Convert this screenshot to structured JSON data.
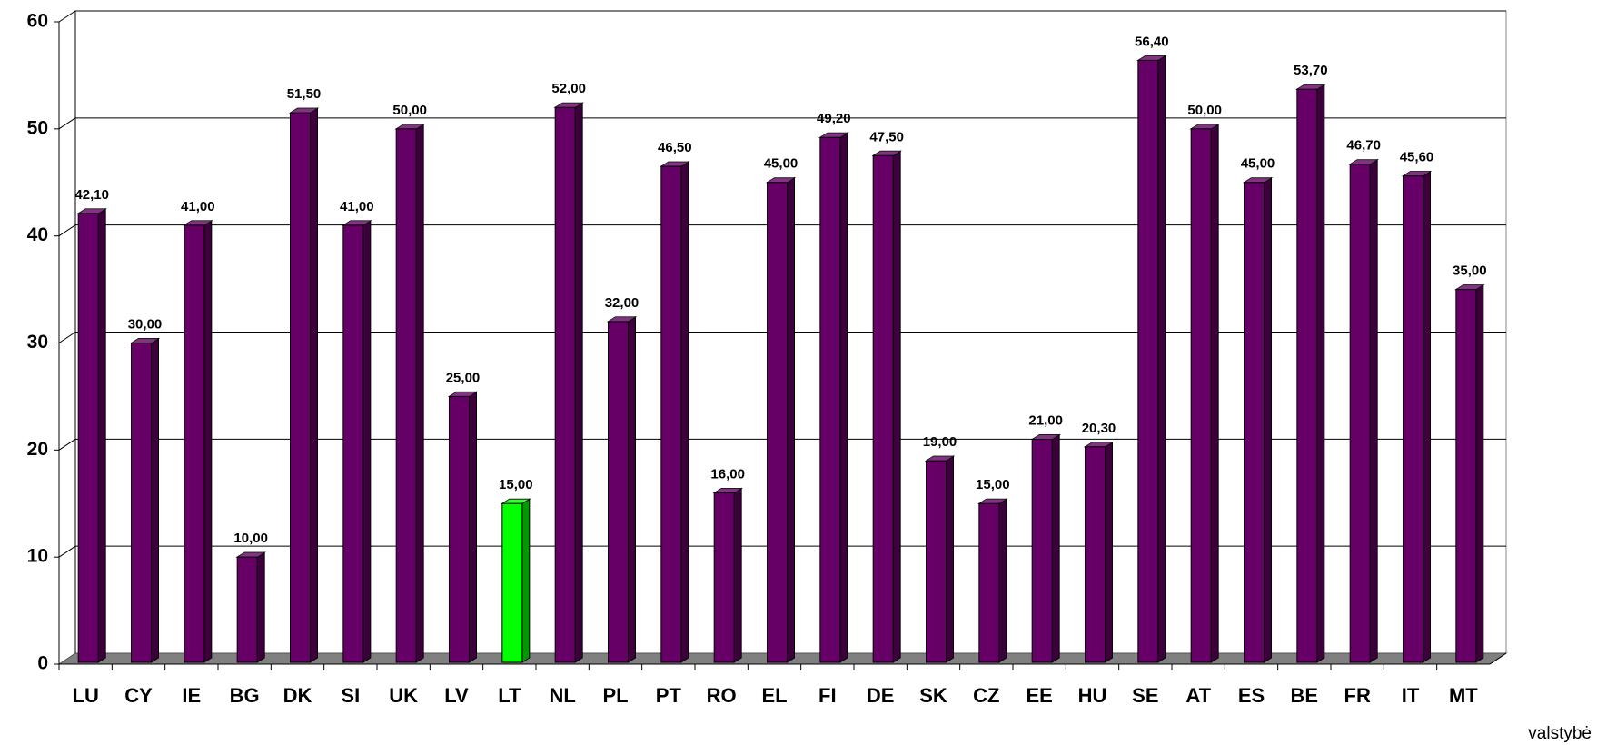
{
  "chart_data": {
    "type": "bar3d",
    "x_label": "valstybė",
    "categories": [
      "LU",
      "CY",
      "IE",
      "BG",
      "DK",
      "SI",
      "UK",
      "LV",
      "LT",
      "NL",
      "PL",
      "PT",
      "RO",
      "EL",
      "FI",
      "DE",
      "SK",
      "CZ",
      "EE",
      "HU",
      "SE",
      "AT",
      "ES",
      "BE",
      "FR",
      "IT",
      "MT"
    ],
    "values": [
      42.1,
      30,
      41,
      10,
      51.5,
      41,
      50,
      25,
      15,
      52,
      32,
      46.5,
      16,
      45,
      49.2,
      47.5,
      19,
      15,
      21,
      20.3,
      56.4,
      50,
      45,
      53.7,
      46.7,
      45.6,
      35
    ],
    "value_labels": [
      "42,10",
      "30,00",
      "41,00",
      "10,00",
      "51,50",
      "41,00",
      "50,00",
      "25,00",
      "15,00",
      "52,00",
      "32,00",
      "46,50",
      "16,00",
      "45,00",
      "49,20",
      "47,50",
      "19,00",
      "15,00",
      "21,00",
      "20,30",
      "56,40",
      "50,00",
      "45,00",
      "53,70",
      "46,70",
      "45,60",
      "35,00"
    ],
    "colors": [
      "#660066",
      "#660066",
      "#660066",
      "#660066",
      "#660066",
      "#660066",
      "#660066",
      "#660066",
      "#00ff00",
      "#660066",
      "#660066",
      "#660066",
      "#660066",
      "#660066",
      "#660066",
      "#660066",
      "#660066",
      "#660066",
      "#660066",
      "#660066",
      "#660066",
      "#660066",
      "#660066",
      "#660066",
      "#660066",
      "#660066",
      "#660066"
    ],
    "ylim": [
      0,
      60
    ],
    "yticks": [
      0,
      10,
      20,
      30,
      40,
      50,
      60
    ],
    "grid": true
  }
}
